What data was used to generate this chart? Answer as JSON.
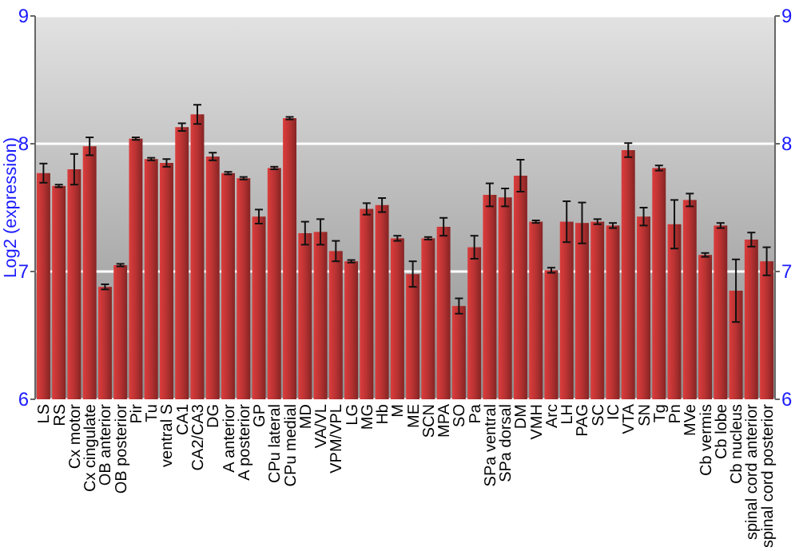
{
  "chart_data": {
    "type": "bar",
    "ylabel": "Log2 (expression)",
    "categories": [
      "LS",
      "RS",
      "Cx motor",
      "Cx cingulate",
      "OB anterior",
      "OB posterior",
      "Pir",
      "Tu",
      "ventral S",
      "CA1",
      "CA2/CA3",
      "DG",
      "A anterior",
      "A posterior",
      "GP",
      "CPu lateral",
      "CPu medial",
      "MD",
      "VA/VL",
      "VPM/VPL",
      "LG",
      "MG",
      "Hb",
      "M",
      "ME",
      "SCN",
      "MPA",
      "SO",
      "Pa",
      "SPa ventral",
      "SPa dorsal",
      "DM",
      "VMH",
      "Arc",
      "LH",
      "PAG",
      "SC",
      "IC",
      "VTA",
      "SN",
      "Tg",
      "Pn",
      "MVe",
      "Cb vermis",
      "Cb lobe",
      "Cb nucleus",
      "spinal cord anterior",
      "spinal cord posterior"
    ],
    "values": [
      7.77,
      7.67,
      7.8,
      7.98,
      6.88,
      7.05,
      8.04,
      7.88,
      7.85,
      8.13,
      8.23,
      7.9,
      7.77,
      7.73,
      7.43,
      7.81,
      8.2,
      7.3,
      7.31,
      7.16,
      7.08,
      7.49,
      7.52,
      7.26,
      6.98,
      7.26,
      7.35,
      6.73,
      7.19,
      7.6,
      7.58,
      7.75,
      7.39,
      7.01,
      7.39,
      7.38,
      7.39,
      7.36,
      7.95,
      7.43,
      7.81,
      7.37,
      7.56,
      7.13,
      7.36,
      6.85,
      7.25,
      7.08
    ],
    "errors": [
      0.075,
      0.01,
      0.12,
      0.07,
      0.02,
      0.01,
      0.01,
      0.01,
      0.03,
      0.03,
      0.075,
      0.03,
      0.01,
      0.01,
      0.055,
      0.01,
      0.01,
      0.09,
      0.1,
      0.08,
      0.01,
      0.045,
      0.055,
      0.02,
      0.1,
      0.01,
      0.07,
      0.06,
      0.09,
      0.09,
      0.07,
      0.125,
      0.01,
      0.02,
      0.16,
      0.16,
      0.02,
      0.02,
      0.055,
      0.07,
      0.02,
      0.19,
      0.05,
      0.015,
      0.02,
      0.245,
      0.055,
      0.11
    ],
    "color": "#b83232",
    "ylim": [
      6,
      9
    ],
    "yticks": [
      6,
      7,
      8,
      9
    ],
    "y2lim": [
      6,
      9
    ],
    "y2ticks": [
      6,
      7,
      8,
      9
    ],
    "grid": "y"
  }
}
